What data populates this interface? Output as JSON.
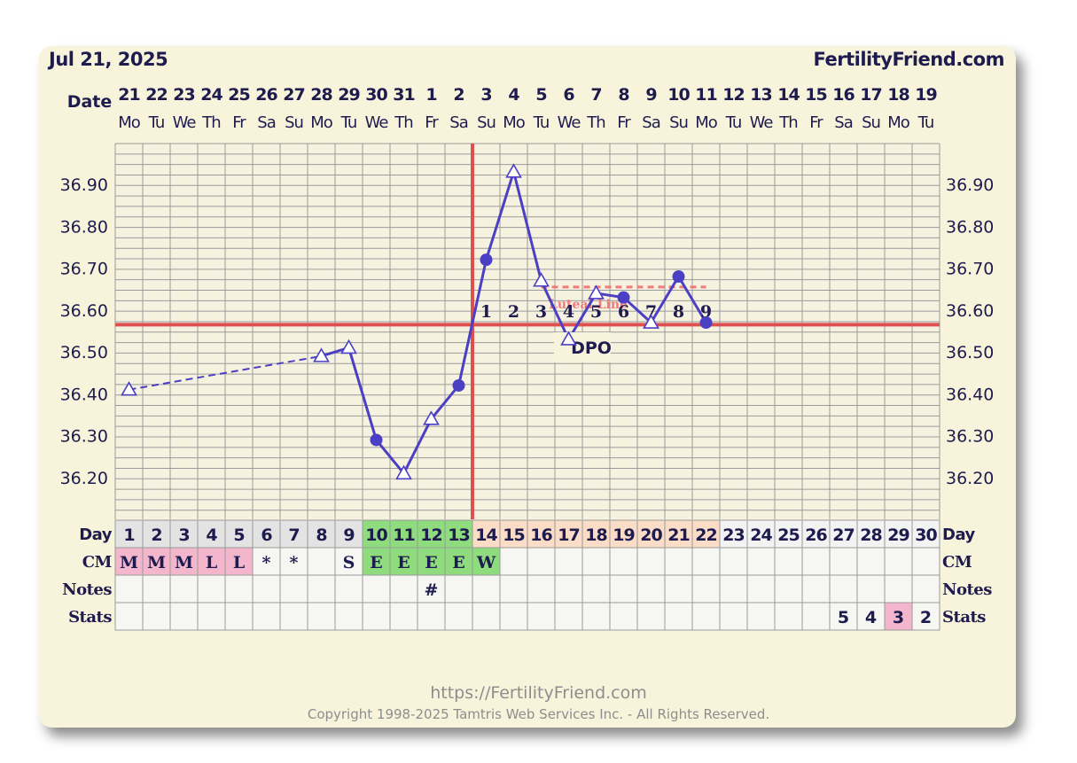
{
  "header": {
    "date": "Jul 21, 2025",
    "site": "FertilityFriend.com"
  },
  "footer": {
    "url": "https://FertilityFriend.com",
    "copyright": "Copyright 1998-2025 Tamtris Web Services Inc. - All Rights Reserved."
  },
  "colors": {
    "temp_line": "#4b3fc3",
    "ovulation_line": "#de5050",
    "coverline": "#de5050",
    "luteal_dash": "#f17a7a",
    "cm_pink": "#f3b6cc",
    "fertile_green": "#8fdc7e",
    "post_ov_peach": "#fbdcc6",
    "day_gray": "#e3e3e3",
    "text_navy": "#1e1b4e"
  },
  "chart_data": {
    "type": "line",
    "row_labels": {
      "date": "Date",
      "day": "Day",
      "cm": "CM",
      "notes": "Notes",
      "stats": "Stats"
    },
    "dates": [
      "21",
      "22",
      "23",
      "24",
      "25",
      "26",
      "27",
      "28",
      "29",
      "30",
      "31",
      "1",
      "2",
      "3",
      "4",
      "5",
      "6",
      "7",
      "8",
      "9",
      "10",
      "11",
      "12",
      "13",
      "14",
      "15",
      "16",
      "17",
      "18",
      "19"
    ],
    "weekdays": [
      "Mo",
      "Tu",
      "We",
      "Th",
      "Fr",
      "Sa",
      "Su",
      "Mo",
      "Tu",
      "We",
      "Th",
      "Fr",
      "Sa",
      "Su",
      "Mo",
      "Tu",
      "We",
      "Th",
      "Fr",
      "Sa",
      "Su",
      "Mo",
      "Tu",
      "We",
      "Th",
      "Fr",
      "Sa",
      "Su",
      "Mo",
      "Tu"
    ],
    "days": [
      "1",
      "2",
      "3",
      "4",
      "5",
      "6",
      "7",
      "8",
      "9",
      "10",
      "11",
      "12",
      "13",
      "14",
      "15",
      "16",
      "17",
      "18",
      "19",
      "20",
      "21",
      "22",
      "23",
      "24",
      "25",
      "26",
      "27",
      "28",
      "29",
      "30"
    ],
    "y_ticks": [
      "36.90",
      "36.80",
      "36.70",
      "36.60",
      "36.50",
      "36.40",
      "36.30",
      "36.20"
    ],
    "ylim": [
      36.15,
      36.95
    ],
    "temps": [
      {
        "day": 1,
        "value": 36.41,
        "marker": "triangle"
      },
      {
        "day": 8,
        "value": 36.49,
        "marker": "triangle"
      },
      {
        "day": 9,
        "value": 36.51,
        "marker": "triangle"
      },
      {
        "day": 10,
        "value": 36.29,
        "marker": "circle"
      },
      {
        "day": 11,
        "value": 36.21,
        "marker": "triangle"
      },
      {
        "day": 12,
        "value": 36.34,
        "marker": "triangle"
      },
      {
        "day": 13,
        "value": 36.42,
        "marker": "circle"
      },
      {
        "day": 14,
        "value": 36.72,
        "marker": "circle"
      },
      {
        "day": 15,
        "value": 36.93,
        "marker": "triangle"
      },
      {
        "day": 16,
        "value": 36.67,
        "marker": "triangle"
      },
      {
        "day": 17,
        "value": 36.53,
        "marker": "triangle"
      },
      {
        "day": 18,
        "value": 36.64,
        "marker": "triangle"
      },
      {
        "day": 19,
        "value": 36.63,
        "marker": "circle"
      },
      {
        "day": 20,
        "value": 36.57,
        "marker": "triangle"
      },
      {
        "day": 21,
        "value": 36.68,
        "marker": "circle"
      },
      {
        "day": 22,
        "value": 36.57,
        "marker": "circle"
      }
    ],
    "dashed_segment": [
      1,
      8
    ],
    "ovulation_day": 13,
    "coverline": 36.565,
    "luteal_level": 36.655,
    "luteal_range": [
      16,
      22
    ],
    "luteal_label": "Luteal Line",
    "dpo_numbers": [
      "1",
      "2",
      "3",
      "4",
      "5",
      "6",
      "7",
      "8",
      "9"
    ],
    "dpo_start_day": 14,
    "dpo_label": "DPO",
    "cm": [
      {
        "day": 1,
        "text": "M",
        "bg": "pink"
      },
      {
        "day": 2,
        "text": "M",
        "bg": "pink"
      },
      {
        "day": 3,
        "text": "M",
        "bg": "pink"
      },
      {
        "day": 4,
        "text": "L",
        "bg": "pink"
      },
      {
        "day": 5,
        "text": "L",
        "bg": "pink"
      },
      {
        "day": 6,
        "text": "*",
        "bg": ""
      },
      {
        "day": 7,
        "text": "*",
        "bg": ""
      },
      {
        "day": 9,
        "text": "S",
        "bg": ""
      },
      {
        "day": 10,
        "text": "E",
        "bg": "green"
      },
      {
        "day": 11,
        "text": "E",
        "bg": "green"
      },
      {
        "day": 12,
        "text": "E",
        "bg": "green"
      },
      {
        "day": 13,
        "text": "E",
        "bg": "green"
      },
      {
        "day": 14,
        "text": "W",
        "bg": "green"
      }
    ],
    "notes": [
      {
        "day": 12,
        "text": "#"
      }
    ],
    "stats": [
      {
        "day": 27,
        "text": "5",
        "bg": ""
      },
      {
        "day": 28,
        "text": "4",
        "bg": ""
      },
      {
        "day": 29,
        "text": "3",
        "bg": "pink"
      },
      {
        "day": 30,
        "text": "2",
        "bg": ""
      }
    ],
    "green_days": [
      10,
      11,
      12,
      13
    ],
    "peach_days": [
      14,
      15,
      16,
      17,
      18,
      19,
      20,
      21,
      22
    ],
    "grid": true
  }
}
